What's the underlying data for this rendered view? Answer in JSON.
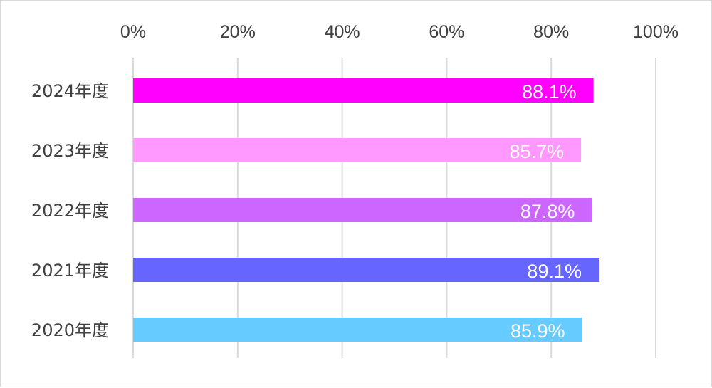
{
  "chart_data": {
    "type": "bar",
    "orientation": "horizontal",
    "categories": [
      "2024年度",
      "2023年度",
      "2022年度",
      "2021年度",
      "2020年度"
    ],
    "values": [
      88.1,
      85.7,
      87.8,
      89.1,
      85.9
    ],
    "data_labels": [
      "88.1%",
      "85.7%",
      "87.8%",
      "89.1%",
      "85.9%"
    ],
    "bar_colors": [
      "#ff00ff",
      "#ff99ff",
      "#cc66ff",
      "#6666ff",
      "#66ccff"
    ],
    "xlim": [
      0,
      100
    ],
    "x_ticks": [
      0,
      20,
      40,
      60,
      80,
      100
    ],
    "x_tick_labels": [
      "0%",
      "20%",
      "40%",
      "60%",
      "80%",
      "100%"
    ],
    "x_axis_position": "top",
    "grid": true,
    "legend": "none"
  }
}
